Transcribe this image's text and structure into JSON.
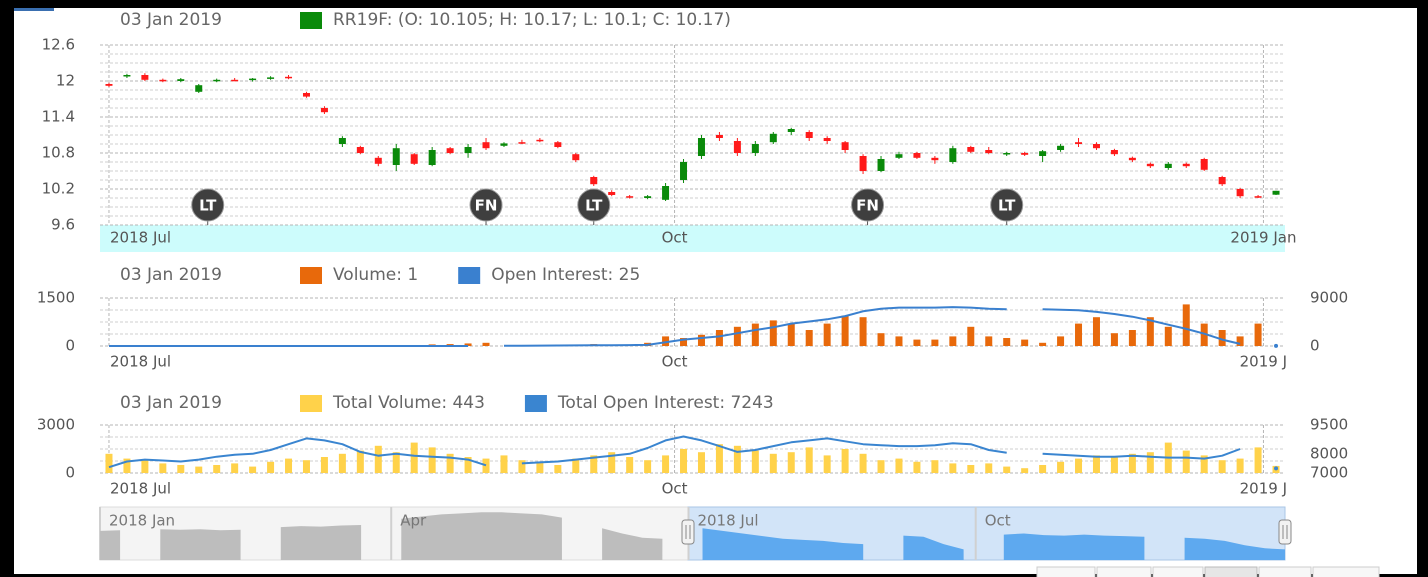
{
  "chart_data": [
    {
      "type": "candlestick",
      "date_label": "03 Jan 2019",
      "xlim": [
        -1,
        131
      ],
      "xticks": [
        {
          "value": 0,
          "label": "2018 Jul"
        },
        {
          "value": 63,
          "label": "Oct"
        },
        {
          "value": 128.6,
          "label": "2019 Jan"
        }
      ],
      "ylim": [
        9.6,
        12.6
      ],
      "yticks": [
        9.6,
        10.2,
        10.8,
        11.4,
        12,
        12.6
      ],
      "grid": true,
      "x": [
        0,
        2,
        4,
        6,
        8,
        10,
        12,
        14,
        16,
        18,
        20,
        22,
        24,
        26,
        28,
        30,
        32,
        34,
        36,
        38,
        40,
        42,
        44,
        46,
        48,
        50,
        52,
        54,
        56,
        58,
        60,
        62,
        64,
        66,
        68,
        70,
        72,
        74,
        76,
        78,
        80,
        82,
        84,
        86,
        88,
        90,
        92,
        94,
        96,
        98,
        100,
        102,
        104,
        106,
        108,
        110,
        112,
        114,
        116,
        118,
        120,
        122,
        124,
        126,
        128,
        130
      ],
      "series": [
        {
          "name": "RR19F: (O: 10.105; H: 10.17; L: 10.1; C: 10.17)",
          "up_color": "#0a8a0a",
          "down_color": "#ff1a1a",
          "open": [
            11.95,
            12.08,
            12.1,
            12.02,
            12.0,
            11.82,
            12.0,
            12.02,
            12.02,
            12.05,
            12.07,
            11.8,
            11.55,
            10.95,
            10.9,
            10.72,
            10.6,
            10.78,
            10.6,
            10.88,
            10.8,
            10.98,
            10.92,
            10.98,
            11.02,
            10.98,
            10.78,
            10.4,
            10.15,
            10.08,
            10.05,
            10.02,
            10.35,
            10.75,
            11.1,
            11.0,
            10.8,
            10.98,
            11.15,
            11.15,
            11.05,
            10.98,
            10.75,
            10.5,
            10.72,
            10.8,
            10.72,
            10.65,
            10.9,
            10.85,
            10.78,
            10.8,
            10.75,
            10.85,
            10.98,
            10.95,
            10.85,
            10.72,
            10.62,
            10.55,
            10.62,
            10.7,
            10.4,
            10.2,
            10.08,
            10.105
          ],
          "high": [
            11.97,
            12.12,
            12.13,
            12.04,
            12.05,
            11.95,
            12.04,
            12.05,
            12.05,
            12.08,
            12.1,
            11.82,
            11.58,
            11.08,
            10.92,
            10.75,
            10.95,
            10.8,
            10.9,
            10.9,
            10.95,
            11.05,
            10.98,
            11.02,
            11.05,
            11.0,
            10.8,
            10.42,
            10.18,
            10.1,
            10.1,
            10.3,
            10.7,
            11.1,
            11.15,
            11.05,
            11.0,
            11.15,
            11.22,
            11.18,
            11.08,
            11.0,
            10.78,
            10.75,
            10.82,
            10.82,
            10.75,
            10.92,
            10.92,
            10.9,
            10.82,
            10.82,
            10.85,
            10.95,
            11.05,
            10.98,
            10.87,
            10.74,
            10.64,
            10.65,
            10.64,
            10.72,
            10.42,
            10.22,
            10.1,
            10.17
          ],
          "low": [
            11.9,
            12.05,
            12.0,
            11.98,
            11.98,
            11.8,
            11.98,
            12.0,
            11.99,
            12.02,
            12.03,
            11.72,
            11.45,
            10.9,
            10.78,
            10.58,
            10.5,
            10.6,
            10.58,
            10.78,
            10.72,
            10.85,
            10.9,
            10.95,
            10.98,
            10.88,
            10.65,
            10.25,
            10.08,
            10.04,
            10.03,
            10.0,
            10.3,
            10.7,
            11.0,
            10.75,
            10.75,
            10.95,
            11.1,
            11.0,
            10.95,
            10.8,
            10.45,
            10.48,
            10.7,
            10.7,
            10.62,
            10.62,
            10.8,
            10.78,
            10.75,
            10.75,
            10.65,
            10.82,
            10.9,
            10.85,
            10.75,
            10.65,
            10.55,
            10.52,
            10.55,
            10.5,
            10.25,
            10.05,
            10.05,
            10.1
          ],
          "close": [
            11.92,
            12.1,
            12.02,
            12.0,
            12.03,
            11.93,
            12.02,
            12.01,
            12.04,
            12.06,
            12.05,
            11.74,
            11.48,
            11.05,
            10.8,
            10.62,
            10.88,
            10.62,
            10.85,
            10.8,
            10.9,
            10.88,
            10.96,
            10.97,
            11.0,
            10.9,
            10.68,
            10.28,
            10.1,
            10.06,
            10.08,
            10.25,
            10.65,
            11.05,
            11.05,
            10.8,
            10.95,
            11.12,
            11.2,
            11.05,
            11.0,
            10.85,
            10.5,
            10.7,
            10.78,
            10.72,
            10.68,
            10.88,
            10.82,
            10.8,
            10.8,
            10.77,
            10.83,
            10.92,
            10.95,
            10.88,
            10.78,
            10.68,
            10.58,
            10.62,
            10.58,
            10.52,
            10.28,
            10.08,
            10.07,
            10.17
          ]
        }
      ],
      "markers": [
        {
          "label": "LT",
          "x": 11
        },
        {
          "label": "FN",
          "x": 42
        },
        {
          "label": "LT",
          "x": 54
        },
        {
          "label": "FN",
          "x": 84.5
        },
        {
          "label": "LT",
          "x": 100
        }
      ]
    },
    {
      "type": "combo",
      "date_label": "03 Jan 2019",
      "xlim": [
        -1,
        131
      ],
      "xticks": [
        {
          "value": 0,
          "label": "2018 Jul"
        },
        {
          "value": 63,
          "label": "Oct"
        },
        {
          "value": 128.6,
          "label": "2019 J"
        }
      ],
      "ylim": [
        0,
        1500
      ],
      "yticks": [
        0,
        1500
      ],
      "y2lim": [
        0,
        9000
      ],
      "y2ticks": [
        0,
        9000
      ],
      "grid": true,
      "x": [
        0,
        2,
        4,
        6,
        8,
        10,
        12,
        14,
        16,
        18,
        20,
        22,
        24,
        26,
        28,
        30,
        32,
        34,
        36,
        38,
        40,
        42,
        44,
        46,
        48,
        50,
        52,
        54,
        56,
        58,
        60,
        62,
        64,
        66,
        68,
        70,
        72,
        74,
        76,
        78,
        80,
        82,
        84,
        86,
        88,
        90,
        92,
        94,
        96,
        98,
        100,
        102,
        104,
        106,
        108,
        110,
        112,
        114,
        116,
        118,
        120,
        122,
        124,
        126,
        128,
        130
      ],
      "series": [
        {
          "name": "Volume: 1",
          "type": "bar",
          "color": "#e8690b",
          "values": [
            0,
            0,
            0,
            0,
            0,
            0,
            0,
            0,
            0,
            0,
            0,
            0,
            0,
            0,
            0,
            0,
            0,
            0,
            50,
            60,
            80,
            100,
            0,
            20,
            20,
            20,
            20,
            60,
            40,
            40,
            100,
            300,
            250,
            350,
            500,
            600,
            700,
            800,
            700,
            500,
            700,
            950,
            900,
            400,
            300,
            200,
            200,
            300,
            600,
            300,
            250,
            200,
            100,
            300,
            700,
            900,
            400,
            500,
            900,
            600,
            1300,
            700,
            500,
            300,
            700,
            1
          ]
        },
        {
          "name": "Open Interest: 25",
          "type": "line",
          "axis": "y2",
          "color": "#3a80cf",
          "values": [
            0,
            0,
            0,
            0,
            0,
            0,
            0,
            0,
            0,
            0,
            0,
            0,
            0,
            0,
            0,
            0,
            0,
            0,
            0,
            0,
            0,
            null,
            50,
            60,
            80,
            100,
            120,
            130,
            150,
            170,
            200,
            700,
            1200,
            1500,
            1800,
            2400,
            3000,
            3500,
            4200,
            4600,
            5000,
            5600,
            6500,
            7000,
            7200,
            7200,
            7200,
            7300,
            7200,
            7000,
            6900,
            null,
            6900,
            6800,
            6700,
            6400,
            6000,
            5500,
            4800,
            4000,
            3200,
            2300,
            1200,
            400,
            null,
            25
          ]
        }
      ]
    },
    {
      "type": "combo",
      "date_label": "03 Jan 2019",
      "xlim": [
        -1,
        131
      ],
      "xticks": [
        {
          "value": 0,
          "label": "2018 Jul"
        },
        {
          "value": 63,
          "label": "Oct"
        },
        {
          "value": 128.6,
          "label": "2019 J"
        }
      ],
      "ylim": [
        0,
        3000
      ],
      "yticks": [
        0,
        3000
      ],
      "y2lim": [
        7000,
        9500
      ],
      "y2ticks": [
        7000,
        8000,
        9500
      ],
      "grid": true,
      "x": [
        0,
        2,
        4,
        6,
        8,
        10,
        12,
        14,
        16,
        18,
        20,
        22,
        24,
        26,
        28,
        30,
        32,
        34,
        36,
        38,
        40,
        42,
        44,
        46,
        48,
        50,
        52,
        54,
        56,
        58,
        60,
        62,
        64,
        66,
        68,
        70,
        72,
        74,
        76,
        78,
        80,
        82,
        84,
        86,
        88,
        90,
        92,
        94,
        96,
        98,
        100,
        102,
        104,
        106,
        108,
        110,
        112,
        114,
        116,
        118,
        120,
        122,
        124,
        126,
        128,
        130
      ],
      "series": [
        {
          "name": "Total Volume: 443",
          "type": "bar",
          "color": "#ffd24a",
          "values": [
            1200,
            900,
            800,
            600,
            500,
            400,
            500,
            600,
            400,
            700,
            900,
            800,
            1000,
            1200,
            1400,
            1700,
            1300,
            1900,
            1600,
            1200,
            1000,
            900,
            1100,
            800,
            700,
            500,
            900,
            1100,
            1300,
            1000,
            800,
            1100,
            1500,
            1300,
            1800,
            1700,
            1400,
            1200,
            1300,
            1600,
            1100,
            1500,
            1200,
            800,
            900,
            700,
            800,
            600,
            500,
            600,
            400,
            300,
            500,
            700,
            900,
            1100,
            1000,
            1200,
            1300,
            1900,
            1400,
            1100,
            800,
            900,
            1600,
            443
          ]
        },
        {
          "name": "Total Open Interest: 7243",
          "type": "line",
          "axis": "y2",
          "color": "#3a85d0",
          "values": [
            7300,
            7600,
            7700,
            7650,
            7600,
            7700,
            7850,
            7950,
            8000,
            8200,
            8500,
            8800,
            8700,
            8500,
            8100,
            7900,
            8000,
            7900,
            7850,
            7800,
            7700,
            7400,
            null,
            7500,
            7550,
            7600,
            7700,
            7800,
            7900,
            8000,
            8300,
            8700,
            8900,
            8700,
            8400,
            8100,
            8200,
            8400,
            8600,
            8700,
            8800,
            8650,
            8500,
            8450,
            8400,
            8400,
            8450,
            8550,
            8500,
            8200,
            8050,
            null,
            8000,
            7950,
            7900,
            7850,
            7850,
            7900,
            7850,
            7800,
            7800,
            7750,
            7900,
            8250,
            null,
            7243
          ]
        }
      ]
    },
    {
      "type": "area",
      "xlim": [
        0,
        59
      ],
      "ylim": [
        0,
        100
      ],
      "xticks": [
        {
          "value": 0,
          "label": "2018 Jan"
        },
        {
          "value": 14.5,
          "label": "Apr"
        },
        {
          "value": 29.3,
          "label": "2018 Jul"
        },
        {
          "value": 43.6,
          "label": "Oct"
        }
      ],
      "color": "#bdbdbd",
      "selected_color": "#5ea9ef",
      "values": [
        55,
        56,
        null,
        58,
        57,
        58,
        56,
        57,
        null,
        62,
        64,
        63,
        65,
        66,
        null,
        78,
        82,
        86,
        88,
        90,
        90,
        88,
        86,
        80,
        null,
        60,
        50,
        42,
        40,
        null,
        60,
        55,
        50,
        45,
        40,
        38,
        36,
        32,
        30,
        null,
        46,
        44,
        30,
        20,
        null,
        48,
        50,
        47,
        46,
        48,
        46,
        45,
        44,
        null,
        42,
        40,
        36,
        28,
        22,
        20
      ]
    }
  ]
}
